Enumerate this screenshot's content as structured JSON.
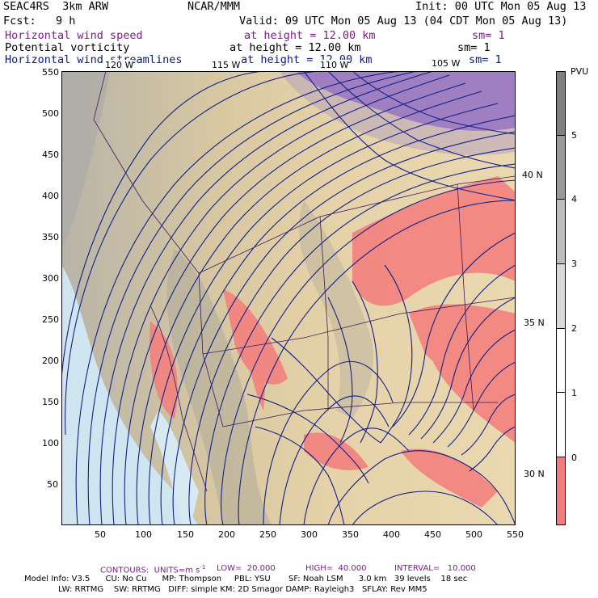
{
  "header": {
    "title_left": "SEAC4RS  3km ARW",
    "title_center": "NCAR/MMM",
    "init": "Init: 00 UTC Mon 05 Aug 13",
    "fcst": "Fcst:   9 h",
    "valid": "Valid: 09 UTC Mon 05 Aug 13 (04 CDT Mon 05 Aug 13)"
  },
  "fields": [
    {
      "name": "Horizontal wind speed",
      "height": "at height = 12.00 km",
      "sm": "sm= 1",
      "color": "#7b1c8c"
    },
    {
      "name": "Potential vorticity",
      "height": "at height = 12.00 km",
      "sm": "sm= 1",
      "color": "#000000"
    },
    {
      "name": "Horizontal wind streamlines",
      "height": "at height = 12.00 km",
      "sm": "sm= 1",
      "color": "#0a1a7a"
    }
  ],
  "map": {
    "x_ticks": [
      "50",
      "100",
      "150",
      "200",
      "250",
      "300",
      "350",
      "400",
      "450",
      "500",
      "550"
    ],
    "y_ticks": [
      "50",
      "100",
      "150",
      "200",
      "250",
      "300",
      "350",
      "400",
      "450",
      "500",
      "550"
    ],
    "lon_labels": [
      "120 W",
      "115 W",
      "110 W",
      "105 W"
    ],
    "lat_labels": [
      "40 N",
      "35 N",
      "30 N"
    ]
  },
  "colorbar": {
    "unit": "PVU",
    "labels": [
      "5",
      "4",
      "3",
      "2",
      "1",
      "0"
    ],
    "colors": [
      "#7f7f7f",
      "#999999",
      "#bdbdbd",
      "#d9d9d9",
      "#ffffff",
      "#ffffff",
      "#f47c7c"
    ]
  },
  "footer": {
    "contours": "CONTOURS:  UNITS=m s",
    "contours_sup": "-1",
    "low": "LOW=  20.000",
    "high": "HIGH=  40.000",
    "interval": "INTERVAL=   10.000",
    "model_line1": "Model Info: V3.5      CU: No Cu      MP: Thompson     PBL: YSU       SF: Noah LSM      3.0 km   39 levels    18 sec",
    "model_line2": "LW: RRTMG    SW: RRTMG   DIFF: simple KM: 2D Smagor DAMP: Rayleigh3   SFLAY: Rev MM5"
  }
}
